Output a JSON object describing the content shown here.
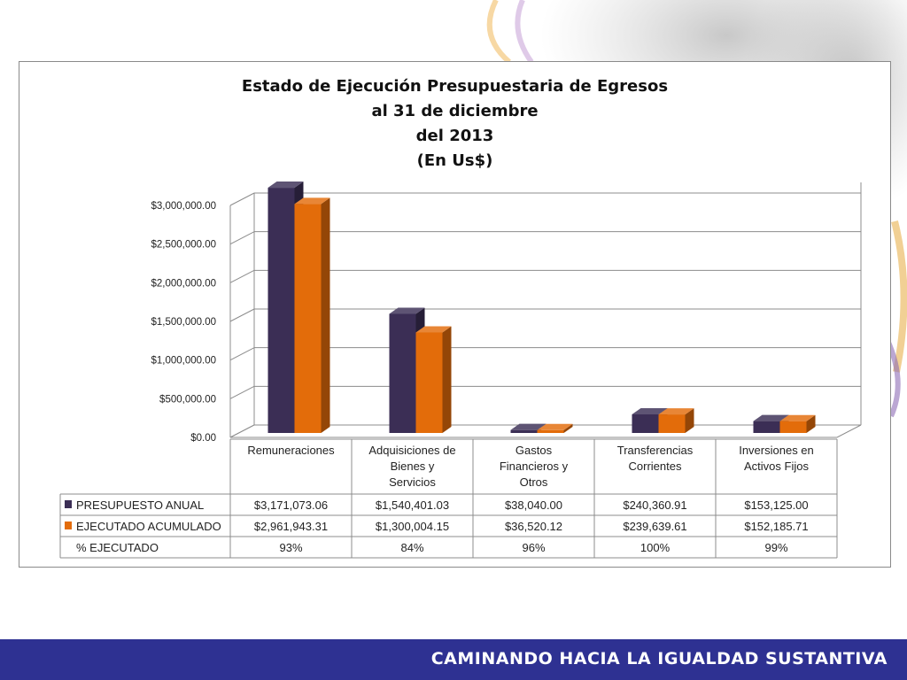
{
  "chart_data": {
    "type": "bar",
    "title_lines": [
      "Estado de Ejecución Presupuestaria de Egresos",
      "al 31 de diciembre",
      "del 2013",
      "(En Us$)"
    ],
    "categories": [
      [
        "Remuneraciones"
      ],
      [
        "Adquisiciones de",
        "Bienes y",
        "Servicios"
      ],
      [
        "Gastos",
        "Financieros y",
        "Otros"
      ],
      [
        "Transferencias",
        "Corrientes"
      ],
      [
        "Inversiones en",
        "Activos Fijos"
      ]
    ],
    "series": [
      {
        "name": "PRESUPUESTO ANUAL",
        "color": "#3b2e55",
        "values": [
          3171073.06,
          1540401.03,
          38040.0,
          240360.91,
          153125.0
        ],
        "labels": [
          "$3,171,073.06",
          "$1,540,401.03",
          "$38,040.00",
          "$240,360.91",
          "$153,125.00"
        ]
      },
      {
        "name": "EJECUTADO ACUMULADO",
        "color": "#e36c0a",
        "values": [
          2961943.31,
          1300004.15,
          36520.12,
          239639.61,
          152185.71
        ],
        "labels": [
          "$2,961,943.31",
          "$1,300,004.15",
          "$36,520.12",
          "$239,639.61",
          "$152,185.71"
        ]
      }
    ],
    "extra_row": {
      "name": "% EJECUTADO",
      "values": [
        "93%",
        "84%",
        "96%",
        "100%",
        "99%"
      ]
    },
    "yticks": [
      "$0.00",
      "$500,000.00",
      "$1,000,000.00",
      "$1,500,000.00",
      "$2,000,000.00",
      "$2,500,000.00",
      "$3,000,000.00"
    ],
    "ylim": [
      0,
      3000000
    ],
    "grid": true,
    "legend": "data-table"
  },
  "footer": {
    "slogan": "CAMINANDO HACIA LA IGUALDAD SUSTANTIVA",
    "band_color": "#2e3192"
  }
}
